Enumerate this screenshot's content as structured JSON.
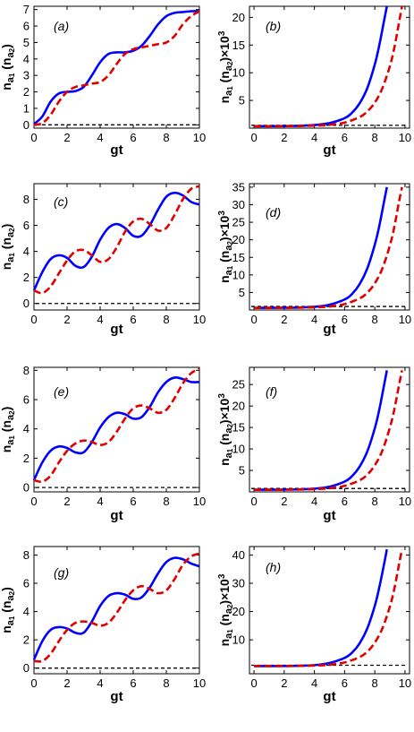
{
  "colors": {
    "blue": "#0000ff",
    "red": "#e00000",
    "axis": "#000000"
  },
  "chart_data": [
    {
      "type": "line",
      "panel_label": "(a)",
      "xlabel": "gt",
      "ylabel": "n_a1 (n_a2)",
      "xlim": [
        0,
        10
      ],
      "ylim": [
        -0.2,
        7.2
      ],
      "xticks": [
        0,
        2,
        4,
        6,
        8,
        10
      ],
      "yticks": [
        0,
        1,
        2,
        3,
        4,
        5,
        6,
        7
      ],
      "baseline": 0,
      "series": [
        {
          "color": "blue",
          "dash": false,
          "x": [
            0,
            0.5,
            1,
            1.5,
            2,
            2.5,
            3,
            3.5,
            4,
            4.5,
            5,
            5.5,
            6,
            6.5,
            7,
            7.5,
            8,
            8.5,
            9,
            9.5,
            10
          ],
          "y": [
            0.05,
            0.5,
            1.4,
            1.9,
            2.0,
            2.05,
            2.3,
            3.0,
            3.8,
            4.3,
            4.4,
            4.4,
            4.5,
            4.8,
            5.4,
            6.1,
            6.6,
            6.8,
            6.85,
            6.9,
            6.9
          ]
        },
        {
          "color": "red",
          "dash": true,
          "x": [
            0,
            0.5,
            1,
            1.5,
            2,
            2.5,
            3,
            3.5,
            4,
            4.5,
            5,
            5.5,
            6,
            6.5,
            7,
            7.5,
            8,
            8.5,
            9,
            9.5,
            10
          ],
          "y": [
            0.0,
            0.1,
            0.6,
            1.4,
            2.0,
            2.3,
            2.4,
            2.5,
            2.6,
            3.0,
            3.7,
            4.3,
            4.6,
            4.7,
            4.8,
            4.9,
            5.0,
            5.4,
            6.1,
            6.6,
            6.9
          ]
        }
      ]
    },
    {
      "type": "line",
      "panel_label": "(b)",
      "xlabel": "gt",
      "ylabel": "n_a1 (n_a2)×10^3",
      "xlim": [
        -0.3,
        10.3
      ],
      "ylim": [
        0,
        22
      ],
      "xticks": [
        0,
        2,
        4,
        6,
        8,
        10
      ],
      "yticks": [
        5,
        10,
        15,
        20
      ],
      "baseline": 0.5,
      "series": [
        {
          "color": "blue",
          "dash": false,
          "x": [
            0,
            1,
            2,
            3,
            4,
            5,
            6,
            6.5,
            7,
            7.5,
            8,
            8.3,
            8.6,
            8.8
          ],
          "y": [
            0.35,
            0.36,
            0.38,
            0.42,
            0.55,
            0.9,
            1.8,
            2.8,
            4.5,
            7.2,
            11.5,
            15.0,
            19.2,
            22.0
          ]
        },
        {
          "color": "red",
          "dash": true,
          "x": [
            0,
            1,
            2,
            3,
            4,
            5,
            6,
            7,
            7.5,
            8,
            8.5,
            9,
            9.3,
            9.6,
            9.8
          ],
          "y": [
            0.35,
            0.35,
            0.36,
            0.38,
            0.45,
            0.6,
            1.0,
            2.0,
            3.0,
            4.6,
            7.2,
            11.2,
            14.6,
            19.0,
            22.0
          ]
        }
      ]
    },
    {
      "type": "line",
      "panel_label": "(c)",
      "xlabel": "gt",
      "ylabel": "n_a1 (n_a2)",
      "xlim": [
        0,
        10
      ],
      "ylim": [
        -0.5,
        9.2
      ],
      "xticks": [
        0,
        2,
        4,
        6,
        8,
        10
      ],
      "yticks": [
        0,
        2,
        4,
        6,
        8
      ],
      "baseline": 0,
      "series": [
        {
          "color": "blue",
          "dash": false,
          "x": [
            0,
            0.5,
            1,
            1.5,
            2,
            2.5,
            3,
            3.5,
            4,
            4.5,
            5,
            5.5,
            6,
            6.5,
            7,
            7.5,
            8,
            8.5,
            9,
            9.5,
            10
          ],
          "y": [
            1.0,
            2.4,
            3.4,
            3.7,
            3.5,
            2.9,
            2.8,
            3.6,
            4.9,
            5.8,
            6.1,
            5.8,
            5.2,
            5.2,
            6.0,
            7.2,
            8.2,
            8.5,
            8.3,
            7.8,
            7.6
          ]
        },
        {
          "color": "red",
          "dash": true,
          "x": [
            0,
            0.5,
            1,
            1.5,
            2,
            2.5,
            3,
            3.5,
            4,
            4.5,
            5,
            5.5,
            6,
            6.5,
            7,
            7.5,
            8,
            8.5,
            9,
            9.5,
            10
          ],
          "y": [
            1.0,
            0.8,
            1.3,
            2.3,
            3.3,
            4.0,
            4.1,
            3.7,
            3.2,
            3.4,
            4.3,
            5.5,
            6.3,
            6.5,
            6.1,
            5.6,
            5.8,
            6.8,
            8.0,
            8.8,
            9.0
          ]
        }
      ]
    },
    {
      "type": "line",
      "panel_label": "(d)",
      "xlabel": "gt",
      "ylabel": "n_a1 (n_a2)×10^3",
      "xlim": [
        -0.3,
        10.3
      ],
      "ylim": [
        0,
        36
      ],
      "xticks": [
        0,
        2,
        4,
        6,
        8,
        10
      ],
      "yticks": [
        5,
        10,
        15,
        20,
        25,
        30,
        35
      ],
      "baseline": 1.0,
      "series": [
        {
          "color": "blue",
          "dash": false,
          "x": [
            0,
            1,
            2,
            3,
            4,
            5,
            6,
            6.5,
            7,
            7.5,
            8,
            8.3,
            8.6,
            8.8
          ],
          "y": [
            0.6,
            0.62,
            0.65,
            0.72,
            0.9,
            1.5,
            3.0,
            4.6,
            7.4,
            11.8,
            18.6,
            24.0,
            30.6,
            35.0
          ]
        },
        {
          "color": "red",
          "dash": true,
          "x": [
            0,
            1,
            2,
            3,
            4,
            5,
            6,
            7,
            7.5,
            8,
            8.5,
            9,
            9.3,
            9.6,
            9.8
          ],
          "y": [
            0.6,
            0.6,
            0.62,
            0.66,
            0.76,
            1.0,
            1.7,
            3.3,
            4.9,
            7.6,
            11.8,
            18.4,
            23.8,
            30.8,
            35.0
          ]
        }
      ]
    },
    {
      "type": "line",
      "panel_label": "(e)",
      "xlabel": "gt",
      "ylabel": "n_a1 (n_a2)",
      "xlim": [
        0,
        10
      ],
      "ylim": [
        -0.3,
        8.2
      ],
      "xticks": [
        0,
        2,
        4,
        6,
        8,
        10
      ],
      "yticks": [
        0,
        2,
        4,
        6,
        8
      ],
      "baseline": 0,
      "series": [
        {
          "color": "blue",
          "dash": false,
          "x": [
            0,
            0.5,
            1,
            1.5,
            2,
            2.5,
            3,
            3.5,
            4,
            4.5,
            5,
            5.5,
            6,
            6.5,
            7,
            7.5,
            8,
            8.5,
            9,
            9.5,
            10
          ],
          "y": [
            0.5,
            1.7,
            2.5,
            2.8,
            2.7,
            2.4,
            2.4,
            3.1,
            4.1,
            4.8,
            5.1,
            5.0,
            4.7,
            4.8,
            5.5,
            6.5,
            7.2,
            7.5,
            7.4,
            7.2,
            7.2
          ]
        },
        {
          "color": "red",
          "dash": true,
          "x": [
            0,
            0.5,
            1,
            1.5,
            2,
            2.5,
            3,
            3.5,
            4,
            4.5,
            5,
            5.5,
            6,
            6.5,
            7,
            7.5,
            8,
            8.5,
            9,
            9.5,
            10
          ],
          "y": [
            0.5,
            0.4,
            0.8,
            1.7,
            2.5,
            3.0,
            3.2,
            3.1,
            2.9,
            3.1,
            3.8,
            4.7,
            5.4,
            5.6,
            5.4,
            5.1,
            5.3,
            6.1,
            7.1,
            7.8,
            8.1
          ]
        }
      ]
    },
    {
      "type": "line",
      "panel_label": "(f)",
      "xlabel": "gt",
      "ylabel": "n_a1 (n_a2)×10^3",
      "xlim": [
        -0.3,
        10.3
      ],
      "ylim": [
        0,
        29
      ],
      "xticks": [
        0,
        2,
        4,
        6,
        8,
        10
      ],
      "yticks": [
        5,
        10,
        15,
        20,
        25
      ],
      "baseline": 0.8,
      "series": [
        {
          "color": "blue",
          "dash": false,
          "x": [
            0,
            1,
            2,
            3,
            4,
            5,
            6,
            6.5,
            7,
            7.5,
            8,
            8.3,
            8.6,
            8.8
          ],
          "y": [
            0.5,
            0.51,
            0.54,
            0.6,
            0.75,
            1.2,
            2.4,
            3.7,
            5.9,
            9.4,
            14.8,
            19.2,
            24.6,
            28.3
          ]
        },
        {
          "color": "red",
          "dash": true,
          "x": [
            0,
            1,
            2,
            3,
            4,
            5,
            6,
            7,
            7.5,
            8,
            8.5,
            9,
            9.3,
            9.6,
            9.8
          ],
          "y": [
            0.5,
            0.5,
            0.52,
            0.55,
            0.64,
            0.85,
            1.4,
            2.7,
            4.0,
            6.2,
            9.6,
            15.0,
            19.3,
            24.8,
            28.3
          ]
        }
      ]
    },
    {
      "type": "line",
      "panel_label": "(g)",
      "xlabel": "gt",
      "ylabel": "n_a1 (n_a2)",
      "xlim": [
        0,
        10
      ],
      "ylim": [
        -0.4,
        8.6
      ],
      "xticks": [
        0,
        2,
        4,
        6,
        8,
        10
      ],
      "yticks": [
        0,
        2,
        4,
        6,
        8
      ],
      "baseline": 0,
      "series": [
        {
          "color": "blue",
          "dash": false,
          "x": [
            0,
            0.5,
            1,
            1.5,
            2,
            2.5,
            3,
            3.5,
            4,
            4.5,
            5,
            5.5,
            6,
            6.5,
            7,
            7.5,
            8,
            8.5,
            9,
            9.5,
            10
          ],
          "y": [
            0.6,
            1.9,
            2.7,
            2.9,
            2.8,
            2.5,
            2.5,
            3.3,
            4.4,
            5.1,
            5.3,
            5.2,
            4.9,
            5.0,
            5.7,
            6.7,
            7.5,
            7.8,
            7.7,
            7.4,
            7.2
          ]
        },
        {
          "color": "red",
          "dash": true,
          "x": [
            0,
            0.5,
            1,
            1.5,
            2,
            2.5,
            3,
            3.5,
            4,
            4.5,
            5,
            5.5,
            6,
            6.5,
            7,
            7.5,
            8,
            8.5,
            9,
            9.5,
            10
          ],
          "y": [
            0.5,
            0.5,
            1.0,
            1.9,
            2.7,
            3.2,
            3.3,
            3.2,
            3.0,
            3.2,
            3.9,
            4.8,
            5.5,
            5.8,
            5.6,
            5.3,
            5.5,
            6.3,
            7.3,
            7.9,
            8.1
          ]
        }
      ]
    },
    {
      "type": "line",
      "panel_label": "(h)",
      "xlabel": "gt",
      "ylabel": "n_a1 (n_a2)×10^3",
      "xlim": [
        -0.3,
        10.3
      ],
      "ylim": [
        -2,
        43
      ],
      "xticks": [
        0,
        2,
        4,
        6,
        8,
        10
      ],
      "yticks": [
        10,
        20,
        30,
        40
      ],
      "baseline": 1.0,
      "series": [
        {
          "color": "blue",
          "dash": false,
          "x": [
            0,
            1,
            2,
            3,
            4,
            5,
            6,
            6.5,
            7,
            7.5,
            8,
            8.3,
            8.6,
            8.8
          ],
          "y": [
            0.7,
            0.72,
            0.76,
            0.84,
            1.05,
            1.8,
            3.6,
            5.5,
            8.8,
            14.0,
            22.0,
            28.6,
            36.4,
            42.0
          ]
        },
        {
          "color": "red",
          "dash": true,
          "x": [
            0,
            1,
            2,
            3,
            4,
            5,
            6,
            7,
            7.5,
            8,
            8.5,
            9,
            9.3,
            9.6,
            9.8
          ],
          "y": [
            0.7,
            0.7,
            0.72,
            0.77,
            0.9,
            1.2,
            2.0,
            3.9,
            5.8,
            9.0,
            14.0,
            21.8,
            28.2,
            36.6,
            42.0
          ]
        }
      ]
    }
  ]
}
